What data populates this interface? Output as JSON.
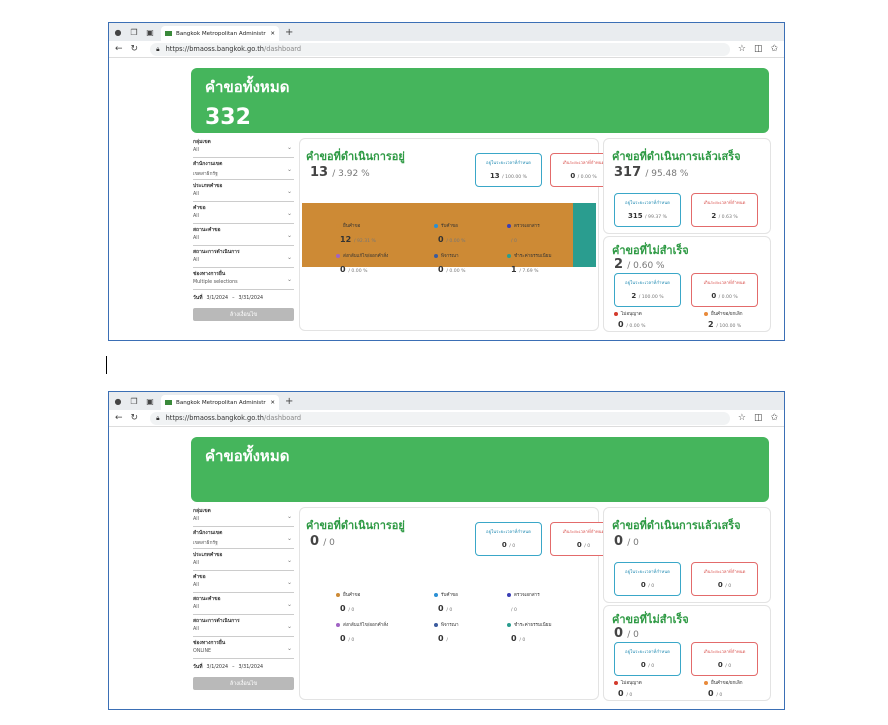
{
  "browser": {
    "tab_title": "Bangkok Metropolitan Administr",
    "url_host": "https://bmaoss.bangkok.go.th",
    "url_path": "/dashboard"
  },
  "filters": {
    "labels": [
      "กลุ่มเขต",
      "สำนักงานเขต",
      "ประเภทคำขอ",
      "คำขอ",
      "สถานะคำขอ",
      "สถานะการดำเนินการ",
      "ช่องทางการยื่น"
    ],
    "date_label": "วันที่",
    "date_from": "3/1/2024",
    "date_to": "3/31/2024",
    "clear_button": "ล้างเงื่อนไข"
  },
  "labels": {
    "total": "คำขอทั้งหมด",
    "in_progress": "คำขอที่ดำเนินการอยู่",
    "completed": "คำขอที่ดำเนินการแล้วเสร็จ",
    "failed": "คำขอที่ไม่สำเร็จ",
    "within_time": "อยู่ในระยะเวลาที่กำหนด",
    "over_time": "เกินระยะเวลาที่กำหนด",
    "legend": [
      "ยื่นคำขอ",
      "รับคำขอ",
      "ตรวจเอกสาร",
      "ส่งกลับแก้ไข/ออกคำสั่ง",
      "พิจารณา",
      "ชำระค่าธรรมเนียม"
    ],
    "failed_legend": [
      "ไม่อนุญาต",
      "ยื่นคำขอ/ยกเลิก"
    ]
  },
  "top": {
    "total": "332",
    "filter_values": [
      "All",
      "เขตสาธิกรัฐ",
      "All",
      "All",
      "All",
      "All",
      "Multiple selections"
    ],
    "in_progress": {
      "value": "13",
      "pct": "/ 3.92 %",
      "within": "13",
      "within_pct": "/ 100.00 %",
      "over": "0",
      "over_pct": "/ 0.00 %"
    },
    "bar": [
      {
        "value": 12,
        "color": "#cd8a35"
      },
      {
        "value": 1,
        "color": "#2a9d8f"
      }
    ],
    "legend_values": [
      {
        "v": "12",
        "p": "/ 92.31 %"
      },
      {
        "v": "0",
        "p": "/ 0.00 %"
      },
      {
        "v": "",
        "p": "/ 0"
      },
      {
        "v": "0",
        "p": "/ 0.00 %"
      },
      {
        "v": "0",
        "p": "/ 0.00 %"
      },
      {
        "v": "1",
        "p": "/ 7.69 %"
      }
    ],
    "completed": {
      "value": "317",
      "pct": "/ 95.48 %",
      "within": "315",
      "within_pct": "/ 99.37 %",
      "over": "2",
      "over_pct": "/ 0.63 %"
    },
    "failed": {
      "value": "2",
      "pct": "/ 0.60 %",
      "within": "2",
      "within_pct": "/ 100.00 %",
      "over": "0",
      "over_pct": "/ 0.00 %"
    },
    "failed_legend_values": [
      {
        "v": "0",
        "p": "/ 0.00 %"
      },
      {
        "v": "2",
        "p": "/ 100.00 %"
      }
    ]
  },
  "bottom": {
    "total": "",
    "filter_values": [
      "All",
      "เขตสาธิกรัฐ",
      "All",
      "All",
      "All",
      "All",
      "ONLINE"
    ],
    "in_progress": {
      "value": "0",
      "pct": "/ 0",
      "within": "0",
      "within_pct": "/ 0",
      "over": "0",
      "over_pct": "/ 0"
    },
    "legend_values": [
      {
        "v": "0",
        "p": "/ 0"
      },
      {
        "v": "0",
        "p": "/ 0"
      },
      {
        "v": "",
        "p": "/ 0"
      },
      {
        "v": "0",
        "p": "/ 0"
      },
      {
        "v": "0",
        "p": "/"
      },
      {
        "v": "0",
        "p": "/ 0"
      }
    ],
    "completed": {
      "value": "0",
      "pct": "/ 0",
      "within": "0",
      "within_pct": "/ 0",
      "over": "0",
      "over_pct": "/ 0"
    },
    "failed": {
      "value": "0",
      "pct": "/ 0",
      "within": "0",
      "within_pct": "/ 0",
      "over": "0",
      "over_pct": "/ 0"
    },
    "failed_legend_values": [
      {
        "v": "0",
        "p": "/ 0"
      },
      {
        "v": "0",
        "p": "/ 0"
      }
    ]
  },
  "colors": {
    "accent_green": "#45b55c",
    "legend": [
      "#cd8a35",
      "#2a8fd4",
      "#3b3fb5",
      "#a063c4",
      "#3b5b9e",
      "#2a9d8f"
    ],
    "failed_legend": [
      "#d33a2c",
      "#e88a3b"
    ]
  }
}
